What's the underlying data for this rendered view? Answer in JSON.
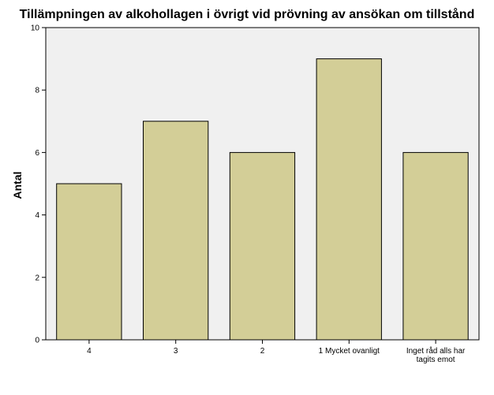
{
  "chart_data": {
    "type": "bar",
    "title": "Tillämpningen av alkohollagen i övrigt vid prövning av ansökan om tillstånd",
    "xlabel": "",
    "ylabel": "Antal",
    "categories": [
      "4",
      "3",
      "2",
      "1 Mycket ovanligt",
      "Inget råd alls har tagits emot"
    ],
    "category_lines": [
      [
        "4"
      ],
      [
        "3"
      ],
      [
        "2"
      ],
      [
        "1 Mycket ovanligt"
      ],
      [
        "Inget råd alls har",
        "tagits emot"
      ]
    ],
    "values": [
      5,
      7,
      6,
      9,
      6
    ],
    "ylim": [
      0,
      10
    ],
    "yticks": [
      0,
      2,
      4,
      6,
      8,
      10
    ],
    "grid": false,
    "legend": "none",
    "colors": {
      "bar_fill": "#d3ce97",
      "plot_background": "#f0f0f0",
      "bar_stroke": "#000000"
    }
  }
}
